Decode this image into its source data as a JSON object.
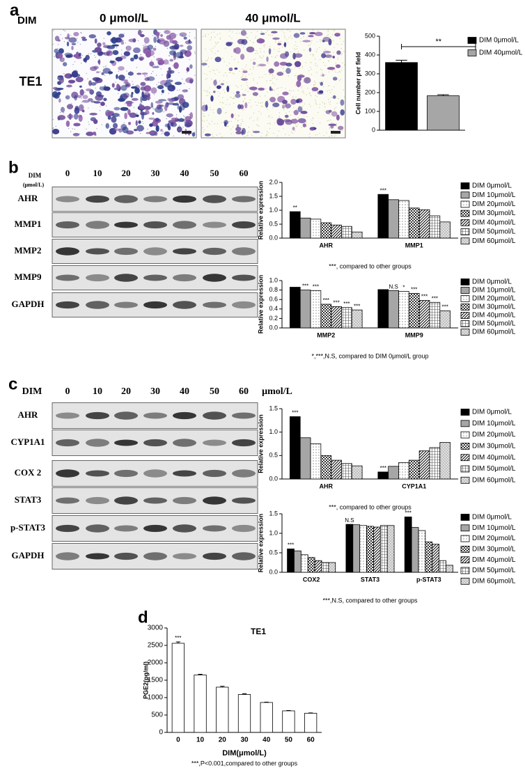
{
  "panel_labels": [
    "a",
    "b",
    "c",
    "d"
  ],
  "panel_a": {
    "row_label": "DIM",
    "conditions": [
      "0 μmol/L",
      "40 μmol/L"
    ],
    "sample": "TE1"
  },
  "panel_b": {
    "dim_label": "DIM",
    "unit": "(μmol/L)",
    "lanes": [
      "0",
      "10",
      "20",
      "30",
      "40",
      "50",
      "60"
    ],
    "proteins": [
      "AHR",
      "MMP1",
      "MMP2",
      "MMP9",
      "GAPDH"
    ]
  },
  "panel_c": {
    "dim_label": "DIM",
    "unit": "μmol/L",
    "lanes": [
      "0",
      "10",
      "20",
      "30",
      "40",
      "50",
      "60"
    ],
    "proteins": [
      "AHR",
      "CYP1A1",
      "COX 2",
      "STAT3",
      "p-STAT3",
      "GAPDH"
    ]
  },
  "chart_data": [
    {
      "type": "bar",
      "ylabel": "Cell number per field",
      "categories": [
        null
      ],
      "annotation": "**",
      "legend": "right",
      "ylim": [
        0,
        500
      ],
      "yticks": [
        0,
        100,
        200,
        300,
        400,
        500
      ],
      "series": [
        {
          "name": "DIM 0μmol/L",
          "color": "#000000",
          "pattern": "solid",
          "values": [
            360
          ],
          "errors": [
            12
          ]
        },
        {
          "name": "DIM 40μmol/L",
          "color": "#a6a6a6",
          "pattern": "solid",
          "values": [
            183
          ],
          "errors": [
            6
          ]
        }
      ]
    },
    {
      "type": "bar",
      "ylabel": "Relative expression",
      "categories": [
        "AHR",
        "MMP1"
      ],
      "footnote": "***, compared to other groups",
      "legend": "right",
      "ylim": [
        0,
        2
      ],
      "yticks": [
        {
          "value": 0,
          "label": "0.0"
        },
        0.5,
        {
          "value": 1,
          "label": "1.0"
        },
        1.5,
        {
          "value": 2,
          "label": "2.0"
        }
      ],
      "series": [
        {
          "name": "DIM 0μmol/L",
          "color": "#000000",
          "pattern": "solid",
          "values": [
            0.95,
            1.57
          ],
          "annotations": [
            "**",
            "***"
          ]
        },
        {
          "name": "DIM 10μmol/L",
          "color": "#a6a6a6",
          "pattern": "solid",
          "values": [
            0.72,
            1.38
          ]
        },
        {
          "name": "DIM 20μmol/L",
          "color": "#ffffff",
          "pattern": "dots",
          "values": [
            0.68,
            1.35
          ]
        },
        {
          "name": "DIM 30μmol/L",
          "color": "#ffffff",
          "pattern": "checker",
          "values": [
            0.55,
            1.08
          ]
        },
        {
          "name": "DIM 40μmol/L",
          "color": "#ffffff",
          "pattern": "hatch",
          "values": [
            0.47,
            1.02
          ]
        },
        {
          "name": "DIM 50μmol/L",
          "color": "#ffffff",
          "pattern": "grid",
          "values": [
            0.42,
            0.8
          ]
        },
        {
          "name": "DIM 60μmol/L",
          "color": "#e0e0e0",
          "pattern": "fine-dots",
          "values": [
            0.22,
            0.58
          ]
        }
      ]
    },
    {
      "type": "bar",
      "ylabel": "Relative expression",
      "categories": [
        "MMP2",
        "MMP9"
      ],
      "footnote": "*,***,N.S, compared to DIM 0μmol/L group",
      "legend": "right",
      "ylim": [
        0,
        1
      ],
      "yticks": [
        {
          "value": 0,
          "label": "0.0"
        },
        0.2,
        0.4,
        0.6,
        0.8,
        {
          "value": 1,
          "label": "1.0"
        }
      ],
      "series": [
        {
          "name": "DIM 0μmol/L",
          "color": "#000000",
          "pattern": "solid",
          "values": [
            0.86,
            0.81
          ]
        },
        {
          "name": "DIM 10μmol/L",
          "color": "#a6a6a6",
          "pattern": "solid",
          "values": [
            0.8,
            0.79
          ],
          "annotations": [
            "***",
            "N.S"
          ]
        },
        {
          "name": "DIM 20μmol/L",
          "color": "#ffffff",
          "pattern": "dots",
          "values": [
            0.79,
            0.77
          ],
          "annotations": [
            "***",
            "*"
          ]
        },
        {
          "name": "DIM 30μmol/L",
          "color": "#ffffff",
          "pattern": "checker",
          "values": [
            0.5,
            0.73
          ],
          "annotations": [
            "***",
            "***"
          ]
        },
        {
          "name": "DIM 40μmol/L",
          "color": "#ffffff",
          "pattern": "hatch",
          "values": [
            0.45,
            0.58
          ],
          "annotations": [
            "***",
            "***"
          ]
        },
        {
          "name": "DIM 50μmol/L",
          "color": "#ffffff",
          "pattern": "grid",
          "values": [
            0.43,
            0.54
          ],
          "annotations": [
            "***",
            "***"
          ]
        },
        {
          "name": "DIM 60μmol/L",
          "color": "#e0e0e0",
          "pattern": "fine-dots",
          "values": [
            0.38,
            0.36
          ],
          "annotations": [
            "***",
            "***"
          ]
        }
      ]
    },
    {
      "type": "bar",
      "ylabel": "Relative expression",
      "categories": [
        "AHR",
        "CYP1A1"
      ],
      "footnote": "***, compared to other groups",
      "legend": "right",
      "ylim": [
        0,
        1.5
      ],
      "yticks": [
        {
          "value": 0,
          "label": "0.0"
        },
        0.5,
        {
          "value": 1,
          "label": "1.0"
        },
        1.5
      ],
      "series": [
        {
          "name": "DIM 0μmol/L",
          "color": "#000000",
          "pattern": "solid",
          "values": [
            1.33,
            0.15
          ],
          "annotations": [
            "***",
            "***"
          ]
        },
        {
          "name": "DIM 10μmol/L",
          "color": "#a6a6a6",
          "pattern": "solid",
          "values": [
            0.88,
            0.27
          ]
        },
        {
          "name": "DIM 20μmol/L",
          "color": "#ffffff",
          "pattern": "dots",
          "values": [
            0.75,
            0.35
          ]
        },
        {
          "name": "DIM 30μmol/L",
          "color": "#ffffff",
          "pattern": "checker",
          "values": [
            0.5,
            0.4
          ]
        },
        {
          "name": "DIM 40μmol/L",
          "color": "#ffffff",
          "pattern": "hatch",
          "values": [
            0.4,
            0.6
          ]
        },
        {
          "name": "DIM 50μmol/L",
          "color": "#ffffff",
          "pattern": "grid",
          "values": [
            0.33,
            0.67
          ]
        },
        {
          "name": "DIM 60μmol/L",
          "color": "#e0e0e0",
          "pattern": "fine-dots",
          "values": [
            0.28,
            0.78
          ]
        }
      ]
    },
    {
      "type": "bar",
      "ylabel": "Relative expression",
      "categories": [
        "COX2",
        "STAT3",
        "p-STAT3"
      ],
      "footnote": "***,N.S, compared to other groups",
      "legend": "right",
      "ylim": [
        0,
        1.5
      ],
      "yticks": [
        {
          "value": 0,
          "label": "0.0"
        },
        0.5,
        {
          "value": 1,
          "label": "1.0"
        },
        1.5
      ],
      "series": [
        {
          "name": "DIM 0μmol/L",
          "color": "#000000",
          "pattern": "solid",
          "values": [
            0.6,
            1.23,
            1.42
          ],
          "annotations": [
            "***",
            "N.S",
            "***"
          ]
        },
        {
          "name": "DIM 10μmol/L",
          "color": "#a6a6a6",
          "pattern": "solid",
          "values": [
            0.55,
            1.22,
            1.15
          ]
        },
        {
          "name": "DIM 20μmol/L",
          "color": "#ffffff",
          "pattern": "dots",
          "values": [
            0.45,
            1.2,
            1.07
          ]
        },
        {
          "name": "DIM 30μmol/L",
          "color": "#ffffff",
          "pattern": "checker",
          "values": [
            0.38,
            1.18,
            0.78
          ]
        },
        {
          "name": "DIM 40μmol/L",
          "color": "#ffffff",
          "pattern": "hatch",
          "values": [
            0.3,
            1.16,
            0.72
          ]
        },
        {
          "name": "DIM 50μmol/L",
          "color": "#ffffff",
          "pattern": "grid",
          "values": [
            0.25,
            1.2,
            0.3
          ]
        },
        {
          "name": "DIM 60μmol/L",
          "color": "#e0e0e0",
          "pattern": "fine-dots",
          "values": [
            0.25,
            1.2,
            0.18
          ]
        }
      ]
    },
    {
      "type": "bar",
      "title": "TE1",
      "ylabel": "PGE2(pg/ml)",
      "xlabel": "DIM(μmol/L)",
      "footnote": "***,P<0.001,compared to other groups",
      "categories": [
        "0",
        "10",
        "20",
        "30",
        "40",
        "50",
        "60"
      ],
      "values": [
        2560,
        1650,
        1300,
        1090,
        860,
        620,
        550
      ],
      "errors": [
        40,
        20,
        25,
        20,
        10,
        10,
        10
      ],
      "annotations": [
        "***",
        null,
        null,
        null,
        null,
        null,
        null
      ],
      "color": "#ffffff",
      "pattern": "solid",
      "ylim": [
        0,
        3000
      ],
      "yticks": [
        0,
        500,
        1000,
        1500,
        2000,
        2500,
        3000
      ]
    }
  ]
}
